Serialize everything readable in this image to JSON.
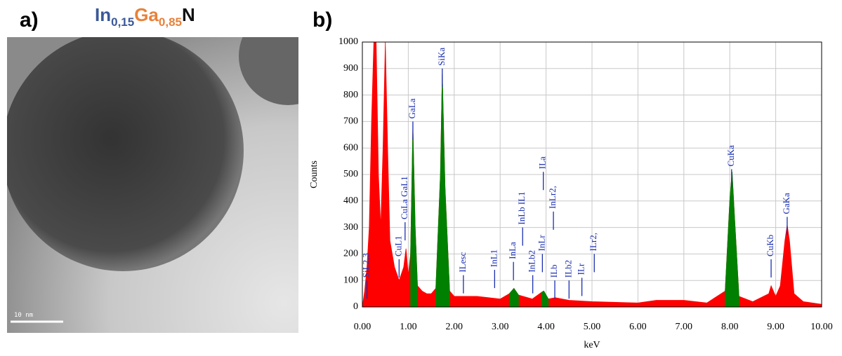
{
  "panel_a": {
    "label": "a)",
    "title": {
      "in": "In",
      "in_sub": "0,15",
      "ga": "Ga",
      "ga_sub": "0,85",
      "n": "N"
    },
    "scale_bar": "10 nm"
  },
  "panel_b": {
    "label": "b)"
  },
  "chart_data": {
    "type": "area",
    "x_label": "keV",
    "y_label": "Counts",
    "x": [
      0.0,
      0.05,
      0.1,
      0.15,
      0.2,
      0.25,
      0.3,
      0.35,
      0.4,
      0.45,
      0.5,
      0.55,
      0.6,
      0.7,
      0.8,
      0.9,
      0.95,
      1.0,
      1.05,
      1.1,
      1.15,
      1.2,
      1.3,
      1.4,
      1.5,
      1.6,
      1.7,
      1.74,
      1.8,
      1.9,
      2.0,
      2.5,
      3.0,
      3.2,
      3.3,
      3.4,
      3.5,
      3.7,
      3.9,
      3.95,
      4.05,
      4.2,
      4.5,
      5.0,
      6.0,
      6.4,
      7.0,
      7.5,
      7.9,
      8.0,
      8.05,
      8.1,
      8.2,
      8.5,
      8.85,
      8.9,
      9.0,
      9.1,
      9.2,
      9.25,
      9.3,
      9.4,
      9.6,
      10.0
    ],
    "series": [
      {
        "color": "#ff0000",
        "values": [
          0,
          60,
          150,
          300,
          700,
          1000,
          1000,
          500,
          300,
          600,
          1000,
          600,
          250,
          150,
          100,
          150,
          220,
          120,
          200,
          680,
          300,
          80,
          60,
          50,
          50,
          70,
          500,
          880,
          450,
          60,
          40,
          40,
          30,
          50,
          70,
          45,
          40,
          30,
          55,
          60,
          30,
          35,
          25,
          20,
          15,
          25,
          25,
          15,
          60,
          400,
          510,
          350,
          40,
          20,
          50,
          80,
          40,
          80,
          250,
          310,
          250,
          50,
          20,
          10
        ]
      },
      {
        "color": "#008000",
        "values": [
          null,
          null,
          null,
          null,
          null,
          null,
          null,
          null,
          null,
          null,
          null,
          null,
          null,
          null,
          null,
          null,
          null,
          null,
          200,
          680,
          300,
          80,
          null,
          null,
          null,
          70,
          500,
          880,
          450,
          60,
          null,
          null,
          null,
          50,
          70,
          45,
          null,
          null,
          55,
          60,
          30,
          null,
          null,
          null,
          null,
          null,
          null,
          null,
          60,
          400,
          510,
          350,
          40,
          null,
          null,
          null,
          null,
          null,
          null,
          null,
          null,
          null,
          null,
          null
        ]
      }
    ],
    "xlim": [
      0,
      10
    ],
    "ylim": [
      0,
      1000
    ],
    "xticks": [
      {
        "value": 0,
        "label": "0.00"
      },
      {
        "value": 1,
        "label": "1.00"
      },
      {
        "value": 2,
        "label": "2.00"
      },
      {
        "value": 3,
        "label": "3.00"
      },
      {
        "value": 4,
        "label": "4.00"
      },
      {
        "value": 5,
        "label": "5.00"
      },
      {
        "value": 6,
        "label": "6.00"
      },
      {
        "value": 7,
        "label": "7.00"
      },
      {
        "value": 8,
        "label": "8.00"
      },
      {
        "value": 9,
        "label": "9.00"
      },
      {
        "value": 10,
        "label": "10.00"
      }
    ],
    "yticks": [
      0,
      100,
      200,
      300,
      400,
      500,
      600,
      700,
      800,
      900,
      1000
    ],
    "grid": true,
    "annotation_color": "#1a2fb0",
    "annotations": [
      {
        "text": "SiL2,3",
        "x": 0.1,
        "y": 100
      },
      {
        "text": "CuL1",
        "x": 0.8,
        "y": 180
      },
      {
        "text": "CuLa GaL1",
        "x": 0.93,
        "y": 320
      },
      {
        "text": "GaLa",
        "x": 1.1,
        "y": 700
      },
      {
        "text": "SiKa",
        "x": 1.74,
        "y": 900
      },
      {
        "text": "ILesc",
        "x": 2.2,
        "y": 120
      },
      {
        "text": "InL1",
        "x": 2.88,
        "y": 140
      },
      {
        "text": "InLa",
        "x": 3.29,
        "y": 170
      },
      {
        "text": "InLb IL1",
        "x": 3.49,
        "y": 300
      },
      {
        "text": "InLb2",
        "x": 3.71,
        "y": 120
      },
      {
        "text": "InLr",
        "x": 3.92,
        "y": 200
      },
      {
        "text": "ILa",
        "x": 3.94,
        "y": 510
      },
      {
        "text": "InLr2,",
        "x": 4.16,
        "y": 360
      },
      {
        "text": "ILb",
        "x": 4.19,
        "y": 100
      },
      {
        "text": "ILb2",
        "x": 4.5,
        "y": 100
      },
      {
        "text": "ILr",
        "x": 4.78,
        "y": 110
      },
      {
        "text": "ILr2,",
        "x": 5.05,
        "y": 200
      },
      {
        "text": "CuKa",
        "x": 8.04,
        "y": 520
      },
      {
        "text": "CuKb",
        "x": 8.9,
        "y": 180
      },
      {
        "text": "GaKa",
        "x": 9.25,
        "y": 340
      }
    ]
  }
}
